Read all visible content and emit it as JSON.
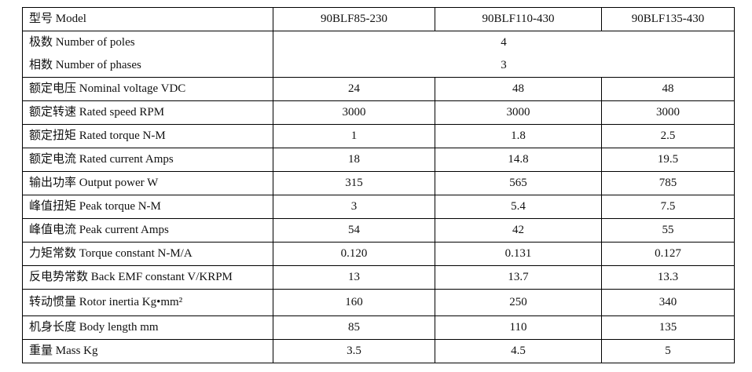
{
  "table": {
    "header": {
      "label": "型号 Model",
      "models": [
        "90BLF85-230",
        "90BLF110-430",
        "90BLF135-430"
      ]
    },
    "poles": {
      "label": "极数 Number of poles",
      "value": "4"
    },
    "phases": {
      "label": "相数 Number of phases",
      "value": "3"
    },
    "rows": [
      {
        "label": "额定电压 Nominal voltage VDC",
        "values": [
          "24",
          "48",
          "48"
        ]
      },
      {
        "label": "额定转速 Rated speed RPM",
        "values": [
          "3000",
          "3000",
          "3000"
        ]
      },
      {
        "label": "额定扭矩 Rated torque N-M",
        "values": [
          "1",
          "1.8",
          "2.5"
        ]
      },
      {
        "label": "额定电流 Rated current Amps",
        "values": [
          "18",
          "14.8",
          "19.5"
        ]
      },
      {
        "label": "输出功率 Output power W",
        "values": [
          "315",
          "565",
          "785"
        ]
      },
      {
        "label": "峰值扭矩 Peak torque N-M",
        "values": [
          "3",
          "5.4",
          "7.5"
        ]
      },
      {
        "label": "峰值电流 Peak current Amps",
        "values": [
          "54",
          "42",
          "55"
        ]
      },
      {
        "label": "力矩常数 Torque constant N-M/A",
        "values": [
          "0.120",
          "0.131",
          "0.127"
        ]
      },
      {
        "label": "反电势常数 Back EMF constant V/KRPM",
        "values": [
          "13",
          "13.7",
          "13.3"
        ]
      },
      {
        "label": "转动惯量 Rotor inertia Kg•mm²",
        "values": [
          "160",
          "250",
          "340"
        ]
      },
      {
        "label": "机身长度 Body length mm",
        "values": [
          "85",
          "110",
          "135"
        ]
      },
      {
        "label": "重量 Mass Kg",
        "values": [
          "3.5",
          "4.5",
          "5"
        ]
      }
    ]
  }
}
